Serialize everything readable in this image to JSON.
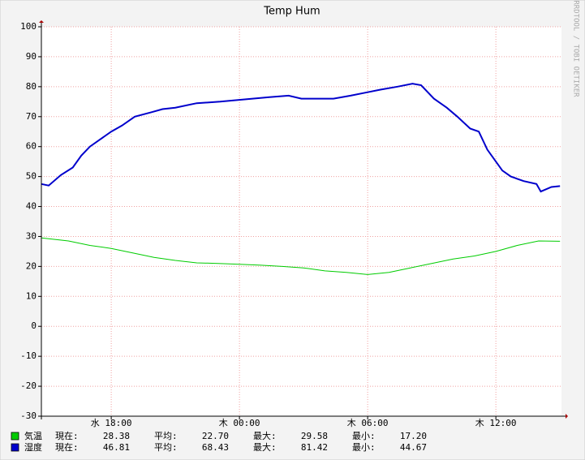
{
  "chart_data": {
    "type": "line",
    "title": "Temp Hum",
    "watermark": "RRDTOOL / TOBI OETIKER",
    "xlim": [
      14.73,
      39.07
    ],
    "xticks": [
      {
        "value": 18,
        "label": "水 18:00"
      },
      {
        "value": 24,
        "label": "木 00:00"
      },
      {
        "value": 30,
        "label": "木 06:00"
      },
      {
        "value": 36,
        "label": "木 12:00"
      }
    ],
    "ylim": [
      -30,
      100
    ],
    "yticks": [
      100,
      90,
      80,
      70,
      60,
      50,
      40,
      30,
      20,
      10,
      0,
      -10,
      -20,
      -30
    ],
    "grid": true,
    "legend_labels": [
      "現在:",
      "平均:",
      "最大:",
      "最小:"
    ],
    "series": [
      {
        "name": "気温",
        "color": "#00cc00",
        "x": [
          14.73,
          16,
          17,
          18,
          19,
          20,
          21,
          22,
          23,
          24,
          25,
          26,
          27,
          28,
          29,
          30,
          31,
          32,
          33,
          34,
          35,
          36,
          37,
          38,
          39
        ],
        "values": [
          29.5,
          28.5,
          27,
          26,
          24.5,
          23,
          22,
          21.2,
          21,
          20.7,
          20.4,
          20,
          19.5,
          18.5,
          18,
          17.3,
          18,
          19.5,
          21,
          22.5,
          23.5,
          25,
          27,
          28.5,
          28.4
        ],
        "stats": [
          28.38,
          {
            "value": 22.7,
            "label": "22.70"
          },
          29.58,
          {
            "value": 17.2,
            "label": "17.20"
          }
        ]
      },
      {
        "name": "湿度",
        "color": "#0000cc",
        "x": [
          14.73,
          15.07,
          15.64,
          16.2,
          16.6,
          17.0,
          17.4,
          18.0,
          18.5,
          19.1,
          19.9,
          20.4,
          21.0,
          22.0,
          23.1,
          24.3,
          25.4,
          26.3,
          26.9,
          27.5,
          28.4,
          29.2,
          29.9,
          30.6,
          31.4,
          32.1,
          32.5,
          33.1,
          33.7,
          34.2,
          34.8,
          35.2,
          35.6,
          36.0,
          36.3,
          36.7,
          37.3,
          37.9,
          38.1,
          38.6,
          39.0
        ],
        "values": [
          47.5,
          47,
          50.5,
          53,
          57,
          60,
          62,
          65,
          67,
          70,
          71.5,
          72.5,
          73,
          74.5,
          75,
          75.8,
          76.5,
          77,
          76,
          76,
          76,
          77,
          78,
          79,
          80,
          81,
          80.5,
          76,
          73,
          70,
          66,
          65,
          59,
          55,
          52,
          50,
          48.5,
          47.5,
          45,
          46.5,
          46.8
        ],
        "stats": [
          46.81,
          68.43,
          81.42,
          44.67
        ]
      }
    ]
  }
}
